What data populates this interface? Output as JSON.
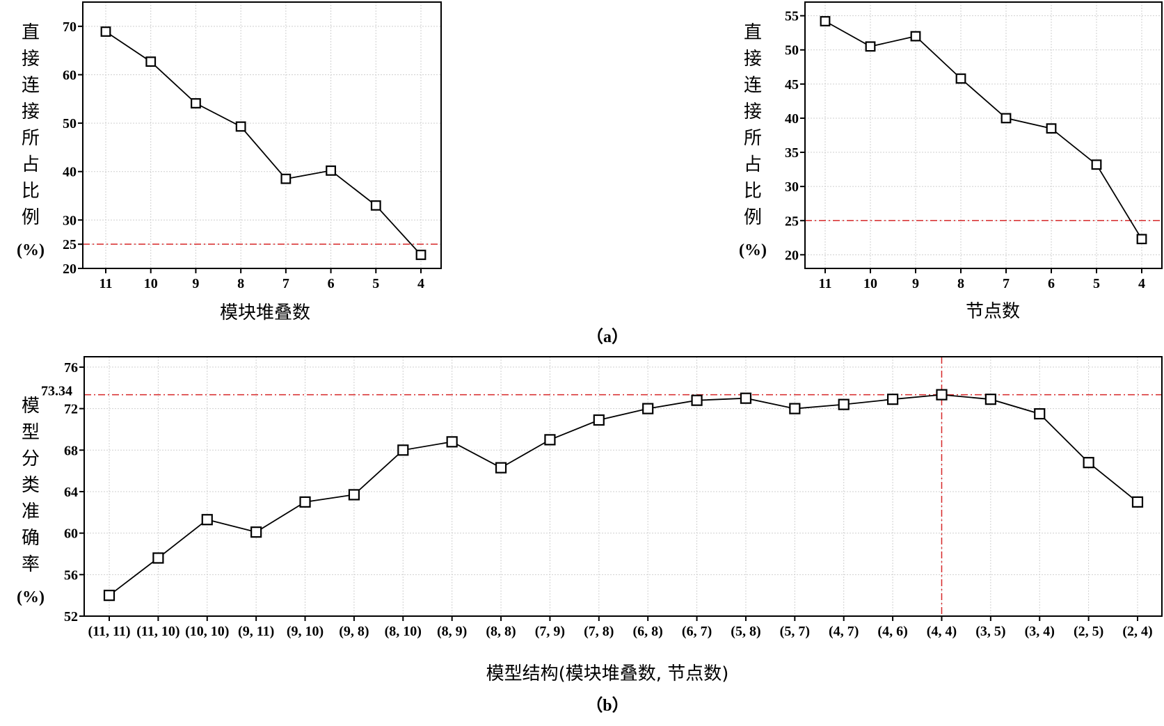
{
  "panels": {
    "a_label": "（a）",
    "b_label": "（b）"
  },
  "chart_data": [
    {
      "type": "line",
      "xlabel": "模块堆叠数",
      "ylabel_chars": [
        "直",
        "接",
        "连",
        "接",
        "所",
        "占",
        "比",
        "例"
      ],
      "ylabel_unit": "(%)",
      "categories": [
        "11",
        "10",
        "9",
        "8",
        "7",
        "6",
        "5",
        "4"
      ],
      "values": [
        68.9,
        62.7,
        54.1,
        49.3,
        38.5,
        40.2,
        33.0,
        22.8
      ],
      "ylim": [
        20,
        75
      ],
      "yticks": [
        "20",
        "25",
        "30",
        "40",
        "50",
        "60",
        "70"
      ],
      "ytick_values": [
        20,
        25,
        30,
        40,
        50,
        60,
        70
      ],
      "reference_line": {
        "value": 25,
        "color": "#d62728"
      },
      "grid": true,
      "marker": "open-square"
    },
    {
      "type": "line",
      "xlabel": "节点数",
      "ylabel_chars": [
        "直",
        "接",
        "连",
        "接",
        "所",
        "占",
        "比",
        "例"
      ],
      "ylabel_unit": "(%)",
      "categories": [
        "11",
        "10",
        "9",
        "8",
        "7",
        "6",
        "5",
        "4"
      ],
      "values": [
        54.2,
        50.5,
        52.0,
        45.8,
        40.0,
        38.5,
        33.2,
        22.3
      ],
      "ylim": [
        18,
        57
      ],
      "yticks": [
        "20",
        "25",
        "30",
        "35",
        "40",
        "45",
        "50",
        "55"
      ],
      "ytick_values": [
        20,
        25,
        30,
        35,
        40,
        45,
        50,
        55
      ],
      "reference_line": {
        "value": 25,
        "color": "#d62728"
      },
      "grid": true,
      "marker": "open-square"
    },
    {
      "type": "line",
      "xlabel": "模型结构(模块堆叠数, 节点数)",
      "ylabel_chars": [
        "模",
        "型",
        "分",
        "类",
        "准",
        "确",
        "率"
      ],
      "ylabel_unit": "(%)",
      "categories": [
        "(11, 11)",
        "(11, 10)",
        "(10, 10)",
        "(9, 11)",
        "(9, 10)",
        "(9, 8)",
        "(8, 10)",
        "(8, 9)",
        "(8, 8)",
        "(7, 9)",
        "(7, 8)",
        "(6, 8)",
        "(6, 7)",
        "(5, 8)",
        "(5, 7)",
        "(4, 7)",
        "(4, 6)",
        "(4, 4)",
        "(3, 5)",
        "(3, 4)",
        "(2, 5)",
        "(2, 4)"
      ],
      "values": [
        54.0,
        57.6,
        61.3,
        60.1,
        63.0,
        63.7,
        68.0,
        68.8,
        66.3,
        69.0,
        70.9,
        72.0,
        72.8,
        73.0,
        72.0,
        72.4,
        72.9,
        73.34,
        72.9,
        71.5,
        66.8,
        63.0
      ],
      "ylim": [
        52,
        77
      ],
      "yticks": [
        "52",
        "56",
        "60",
        "64",
        "68",
        "72",
        "76"
      ],
      "ytick_values": [
        52,
        56,
        60,
        64,
        68,
        72,
        76
      ],
      "annotation": {
        "label": "73.34",
        "value": 73.34
      },
      "reference_line": {
        "value": 73.34,
        "color": "#d62728"
      },
      "reference_vline": {
        "category": "(4, 4)",
        "color": "#d62728"
      },
      "grid": true,
      "marker": "open-square"
    }
  ]
}
